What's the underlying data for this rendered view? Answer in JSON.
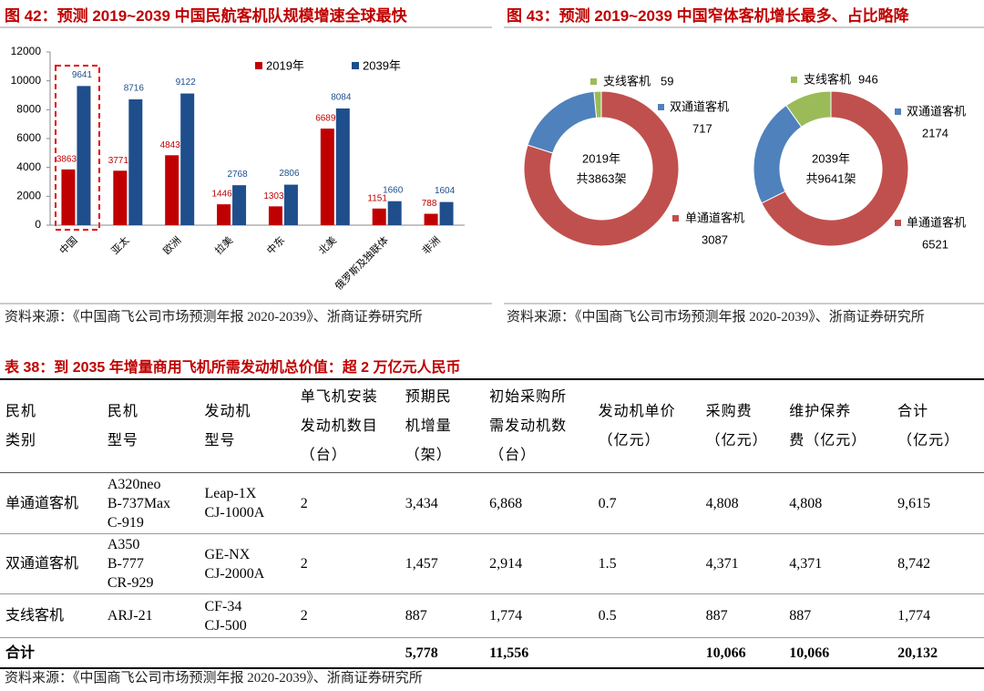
{
  "figures": [
    {
      "title": "图 42：预测 2019~2039 中国民航客机队规模增速全球最快",
      "source": "资料来源：《中国商飞公司市场预测年报 2020-2039》、浙商证券研究所"
    },
    {
      "title": "图 43：预测 2019~2039 中国窄体客机增长最多、占比略降",
      "source": "资料来源：《中国商飞公司市场预测年报 2020-2039》、浙商证券研究所"
    }
  ],
  "chart_data": [
    {
      "type": "bar",
      "categories": [
        "中国",
        "亚太",
        "欧洲",
        "拉美",
        "中东",
        "北美",
        "俄罗斯及独联体",
        "非洲"
      ],
      "series": [
        {
          "name": "2019年",
          "color": "#c00000",
          "values": [
            3863,
            3771,
            4843,
            1446,
            1303,
            6689,
            1151,
            788
          ]
        },
        {
          "name": "2039年",
          "color": "#1f4e8c",
          "values": [
            9641,
            8716,
            9122,
            2768,
            2806,
            8084,
            1660,
            1604
          ]
        }
      ],
      "ylim": [
        0,
        12000
      ],
      "yticks": [
        0,
        2000,
        4000,
        6000,
        8000,
        10000,
        12000
      ],
      "grid": false,
      "legend": "top"
    },
    {
      "type": "pie",
      "center_label": [
        "2019年",
        "共3863架"
      ],
      "categories": [
        "支线客机",
        "双通道客机",
        "单通道客机"
      ],
      "values": [
        59,
        717,
        3087
      ],
      "colors": [
        "#9bbb59",
        "#4f81bd",
        "#c0504d"
      ]
    },
    {
      "type": "pie",
      "center_label": [
        "2039年",
        "共9641架"
      ],
      "categories": [
        "支线客机",
        "双通道客机",
        "单通道客机"
      ],
      "values": [
        946,
        2174,
        6521
      ],
      "colors": [
        "#9bbb59",
        "#4f81bd",
        "#c0504d"
      ]
    }
  ],
  "table": {
    "title": "表 38：到 2035 年增量商用飞机所需发动机总价值：超 2 万亿元人民币",
    "header": [
      [
        "民机",
        "类别"
      ],
      [
        "民机",
        "型号"
      ],
      [
        "发动机",
        "型号"
      ],
      [
        "单飞机安装",
        "发动机数目",
        "（台）"
      ],
      [
        "预期民",
        "机增量",
        "（架）"
      ],
      [
        "初始采购所",
        "需发动机数",
        "（台）"
      ],
      [
        "发动机单价",
        "（亿元）"
      ],
      [
        "采购费",
        "（亿元）"
      ],
      [
        "维护保养",
        "费（亿元）"
      ],
      [
        "合计",
        "（亿元）"
      ]
    ],
    "rows": [
      [
        [
          "单通道客机"
        ],
        [
          "A320neo",
          "B-737Max",
          "C-919"
        ],
        [
          "Leap-1X",
          "CJ-1000A"
        ],
        [
          "2"
        ],
        [
          "3,434"
        ],
        [
          "6,868"
        ],
        [
          "0.7"
        ],
        [
          "4,808"
        ],
        [
          "4,808"
        ],
        [
          "9,615"
        ]
      ],
      [
        [
          "双通道客机"
        ],
        [
          "A350",
          "B-777",
          "CR-929"
        ],
        [
          "GE-NX",
          "CJ-2000A"
        ],
        [
          "2"
        ],
        [
          "1,457"
        ],
        [
          "2,914"
        ],
        [
          "1.5"
        ],
        [
          "4,371"
        ],
        [
          "4,371"
        ],
        [
          "8,742"
        ]
      ],
      [
        [
          "支线客机"
        ],
        [
          "ARJ-21"
        ],
        [
          "CF-34",
          "CJ-500"
        ],
        [
          "2"
        ],
        [
          "887"
        ],
        [
          "1,774"
        ],
        [
          "0.5"
        ],
        [
          "887"
        ],
        [
          "887"
        ],
        [
          "1,774"
        ]
      ]
    ],
    "total": [
      "合计",
      "",
      "",
      "",
      "5,778",
      "11,556",
      "",
      "10,066",
      "10,066",
      "20,132"
    ],
    "source": "资料来源：《中国商飞公司市场预测年报 2020-2039》、浙商证券研究所"
  }
}
